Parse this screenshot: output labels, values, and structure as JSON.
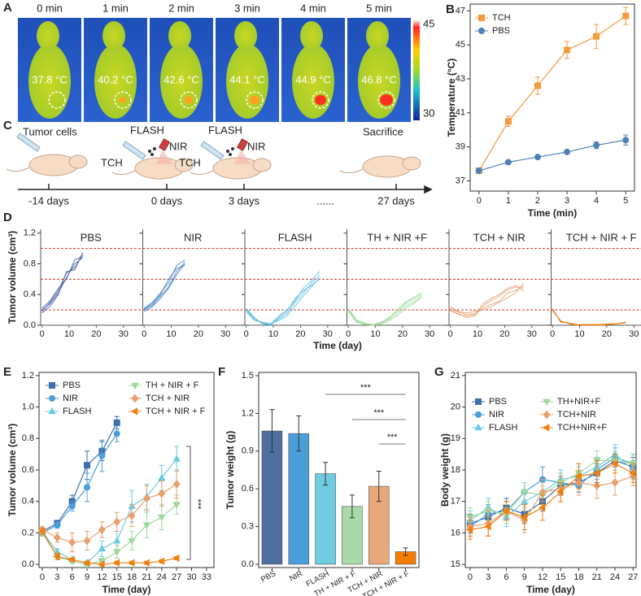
{
  "panel_a": {
    "letter": "A",
    "frames": [
      {
        "time": "0 min",
        "temperature": "37.8 °C"
      },
      {
        "time": "1 min",
        "temperature": "40.2 °C"
      },
      {
        "time": "2 min",
        "temperature": "42.6 °C"
      },
      {
        "time": "3 min",
        "temperature": "44.1 °C"
      },
      {
        "time": "4 min",
        "temperature": "44.9 °C"
      },
      {
        "time": "5 min",
        "temperature": "46.8 °C"
      }
    ],
    "colorbar": {
      "max": "45",
      "min": "30"
    }
  },
  "panel_c": {
    "letter": "C",
    "labels": [
      "Tumor cells",
      "FLASH",
      "NIR",
      "TCH",
      "FLASH",
      "NIR",
      "TCH",
      "Sacrifice"
    ],
    "timeline": [
      "-14 days",
      "0 days",
      "3 days",
      "......",
      "27 days"
    ]
  },
  "chart_data": [
    {
      "panel": "B",
      "type": "line",
      "xlabel": "Time (min)",
      "ylabel": "Temperature (°C)",
      "x": [
        0,
        1,
        2,
        3,
        4,
        5
      ],
      "xlim": [
        -0.3,
        5.3
      ],
      "xticks": [
        0,
        1,
        2,
        3,
        4,
        5
      ],
      "ylim": [
        36.4,
        47.4
      ],
      "yticks": [
        37,
        39,
        41,
        43,
        45,
        47
      ],
      "legend": "upper left",
      "series": [
        {
          "name": "TCH",
          "color": "#f39a3c",
          "marker": "square",
          "values": [
            37.6,
            40.5,
            42.6,
            44.7,
            45.5,
            46.7
          ],
          "errors": [
            0.1,
            0.3,
            0.5,
            0.5,
            0.7,
            0.5
          ]
        },
        {
          "name": "PBS",
          "color": "#4f81b8",
          "marker": "circle",
          "values": [
            37.6,
            38.1,
            38.4,
            38.7,
            39.1,
            39.4
          ],
          "errors": [
            0.1,
            0.1,
            0.1,
            0.1,
            0.2,
            0.3
          ]
        }
      ]
    },
    {
      "panel": "D",
      "type": "multi-line",
      "xlabel": "Time (day)",
      "ylabel": "Tumor volume (cm³)",
      "xlim": [
        -0.5,
        36.5
      ],
      "xticks": [
        0,
        10,
        20,
        30
      ],
      "ylim": [
        0,
        1.25
      ],
      "yticks": [
        {
          "value": 0,
          "label": "0.0"
        },
        0.4,
        0.8,
        1.2
      ],
      "hlines": [
        0.2,
        0.6,
        1.0
      ],
      "hline_color": "#c0392b",
      "panels": [
        {
          "title": "PBS",
          "color": "#3f5fa6",
          "x": [
            0,
            3,
            6,
            9,
            12,
            15
          ],
          "series": [
            {
              "values": [
                0.18,
                0.3,
                0.45,
                0.68,
                0.75,
                0.92
              ]
            },
            {
              "values": [
                0.2,
                0.28,
                0.42,
                0.62,
                0.8,
                0.88
              ]
            },
            {
              "values": [
                0.16,
                0.25,
                0.4,
                0.7,
                0.72,
                0.95
              ]
            },
            {
              "values": [
                0.22,
                0.32,
                0.48,
                0.6,
                0.85,
                0.9
              ]
            }
          ]
        },
        {
          "title": "NIR",
          "color": "#3f80c2",
          "x": [
            0,
            3,
            6,
            9,
            12,
            15
          ],
          "series": [
            {
              "values": [
                0.2,
                0.26,
                0.38,
                0.5,
                0.7,
                0.82
              ]
            },
            {
              "values": [
                0.22,
                0.3,
                0.42,
                0.55,
                0.78,
                0.85
              ]
            },
            {
              "values": [
                0.18,
                0.24,
                0.35,
                0.48,
                0.66,
                0.8
              ]
            },
            {
              "values": [
                0.21,
                0.28,
                0.4,
                0.6,
                0.74,
                0.78
              ]
            }
          ]
        },
        {
          "title": "FLASH",
          "color": "#5bbbe0",
          "x": [
            0,
            3,
            6,
            9,
            12,
            15,
            18,
            21,
            24,
            27
          ],
          "series": [
            {
              "values": [
                0.2,
                0.08,
                0.03,
                0.01,
                0.08,
                0.15,
                0.3,
                0.42,
                0.55,
                0.65
              ]
            },
            {
              "values": [
                0.22,
                0.1,
                0.02,
                0.0,
                0.1,
                0.18,
                0.35,
                0.45,
                0.52,
                0.6
              ]
            },
            {
              "values": [
                0.18,
                0.06,
                0.04,
                0.02,
                0.06,
                0.12,
                0.25,
                0.38,
                0.5,
                0.62
              ]
            },
            {
              "values": [
                0.21,
                0.09,
                0.02,
                0.01,
                0.12,
                0.2,
                0.32,
                0.48,
                0.58,
                0.7
              ]
            }
          ]
        },
        {
          "title": "TH + NIR +F",
          "color": "#9fd99a",
          "x": [
            0,
            3,
            6,
            9,
            12,
            15,
            18,
            21,
            24,
            27
          ],
          "series": [
            {
              "values": [
                0.2,
                0.05,
                0.02,
                0.0,
                0.02,
                0.08,
                0.15,
                0.25,
                0.3,
                0.38
              ]
            },
            {
              "values": [
                0.22,
                0.07,
                0.03,
                0.01,
                0.03,
                0.1,
                0.18,
                0.28,
                0.34,
                0.4
              ]
            },
            {
              "values": [
                0.18,
                0.04,
                0.01,
                0.0,
                0.01,
                0.06,
                0.12,
                0.22,
                0.28,
                0.36
              ]
            },
            {
              "values": [
                0.21,
                0.06,
                0.02,
                0.01,
                0.04,
                0.09,
                0.2,
                0.3,
                0.36,
                0.42
              ]
            }
          ]
        },
        {
          "title": "TCH + NIR",
          "color": "#e8a070",
          "x": [
            0,
            3,
            6,
            9,
            12,
            15,
            18,
            21,
            24,
            27
          ],
          "series": [
            {
              "values": [
                0.22,
                0.17,
                0.14,
                0.15,
                0.22,
                0.27,
                0.31,
                0.42,
                0.45,
                0.51
              ]
            },
            {
              "values": [
                0.2,
                0.15,
                0.1,
                0.12,
                0.25,
                0.32,
                0.38,
                0.46,
                0.5,
                0.48
              ]
            },
            {
              "values": [
                0.24,
                0.18,
                0.16,
                0.18,
                0.2,
                0.24,
                0.3,
                0.36,
                0.42,
                0.55
              ]
            },
            {
              "values": [
                0.19,
                0.14,
                0.12,
                0.14,
                0.28,
                0.35,
                0.4,
                0.48,
                0.52,
                0.44
              ]
            }
          ]
        },
        {
          "title": "TCH + NIR + F",
          "color": "#f07f10",
          "x": [
            0,
            3,
            6,
            9,
            12,
            15,
            18,
            21,
            24,
            27
          ],
          "series": [
            {
              "values": [
                0.21,
                0.05,
                0.03,
                0.01,
                0.0,
                0.01,
                0.01,
                0.01,
                0.02,
                0.04
              ]
            },
            {
              "values": [
                0.19,
                0.06,
                0.02,
                0.0,
                0.01,
                0.01,
                0.0,
                0.01,
                0.02,
                0.03
              ]
            },
            {
              "values": [
                0.22,
                0.04,
                0.03,
                0.01,
                0.01,
                0.0,
                0.01,
                0.02,
                0.02,
                0.04
              ]
            }
          ]
        }
      ]
    },
    {
      "panel": "E",
      "type": "line",
      "xlabel": "Time (day)",
      "ylabel": "Tumor volume (cm³)",
      "annotation": "***",
      "x": [
        0,
        3,
        6,
        9,
        12,
        15,
        18,
        21,
        24,
        27
      ],
      "xlim": [
        -0.65,
        34.5
      ],
      "xticks": [
        0,
        3,
        6,
        9,
        12,
        15,
        18,
        21,
        24,
        27,
        30,
        33
      ],
      "ylim": [
        -0.02,
        1.22
      ],
      "yticks": [
        {
          "value": 0,
          "label": "0.0"
        },
        0.2,
        0.4,
        0.6,
        0.8,
        {
          "value": 1,
          "label": "1.0"
        },
        1.2
      ],
      "legend": "upper left",
      "series": [
        {
          "name": "PBS",
          "color": "#3e6fa8",
          "marker": "square",
          "values": [
            0.21,
            0.26,
            0.4,
            0.63,
            0.72,
            0.9,
            null,
            null,
            null,
            null
          ],
          "errors": [
            0.02,
            0.02,
            0.04,
            0.09,
            0.06,
            0.04,
            null,
            null,
            null,
            null
          ]
        },
        {
          "name": "NIR",
          "color": "#4a9ed9",
          "marker": "circle",
          "values": [
            0.2,
            0.25,
            0.37,
            0.49,
            0.69,
            0.83,
            null,
            null,
            null,
            null
          ],
          "errors": [
            0.02,
            0.02,
            0.03,
            0.09,
            0.1,
            0.05,
            null,
            null,
            null,
            null
          ]
        },
        {
          "name": "FLASH",
          "color": "#6ecbe0",
          "marker": "triangle-up",
          "values": [
            0.21,
            0.08,
            0.03,
            0.01,
            0.1,
            0.15,
            0.37,
            0.43,
            0.55,
            0.67
          ],
          "errors": [
            0.02,
            0.02,
            0.01,
            0.01,
            0.05,
            0.06,
            0.1,
            0.08,
            0.08,
            0.08
          ]
        },
        {
          "name": "TH + NIR + F",
          "color": "#9fd99a",
          "marker": "triangle-down",
          "values": [
            0.2,
            0.05,
            0.02,
            0.0,
            0.02,
            0.08,
            0.15,
            0.25,
            0.3,
            0.38
          ],
          "errors": [
            0.02,
            0.01,
            0.01,
            0.01,
            0.02,
            0.04,
            0.06,
            0.08,
            0.08,
            0.06
          ]
        },
        {
          "name": "TCH + NIR",
          "color": "#e8a070",
          "marker": "diamond",
          "values": [
            0.22,
            0.17,
            0.14,
            0.15,
            0.22,
            0.27,
            0.31,
            0.42,
            0.45,
            0.51
          ],
          "errors": [
            0.02,
            0.03,
            0.06,
            0.06,
            0.05,
            0.06,
            0.07,
            0.08,
            0.08,
            0.09
          ]
        },
        {
          "name": "TCH + NIR + F",
          "color": "#f07f10",
          "marker": "triangle-left",
          "values": [
            0.21,
            0.05,
            0.03,
            0.01,
            0.0,
            0.01,
            0.01,
            0.01,
            0.02,
            0.04
          ],
          "errors": [
            0.02,
            0.02,
            0.01,
            0.01,
            0.01,
            0.01,
            0.01,
            0.01,
            0.01,
            0.01
          ]
        }
      ]
    },
    {
      "panel": "F",
      "type": "bar",
      "ylabel": "Tumor weight (g)",
      "annotations": [
        "***",
        "***",
        "***"
      ],
      "categories": [
        "PBS",
        "NIR",
        "FLASH",
        "TH + NIR + F",
        "TCH + NIR",
        "TCH + NIR + F"
      ],
      "values": [
        1.06,
        1.04,
        0.72,
        0.46,
        0.62,
        0.1
      ],
      "errors": [
        0.17,
        0.14,
        0.09,
        0.09,
        0.12,
        0.03
      ],
      "colors": [
        "#4e6fa0",
        "#4a9ed9",
        "#6ecbe0",
        "#a8dba8",
        "#e8a87c",
        "#f57c00"
      ],
      "ylim": [
        -0.026,
        1.526
      ],
      "yticks": [
        {
          "value": 0,
          "label": "0.0"
        },
        0.3,
        0.6,
        0.9,
        1.2,
        1.5
      ]
    },
    {
      "panel": "G",
      "type": "line",
      "xlabel": "Time (day)",
      "ylabel": "Body weight (g)",
      "x": [
        0,
        3,
        6,
        9,
        12,
        15,
        18,
        21,
        24,
        27
      ],
      "xlim": [
        -0.8,
        27.5
      ],
      "xticks": [
        0,
        3,
        6,
        9,
        12,
        15,
        18,
        21,
        24,
        27
      ],
      "ylim": [
        14.9,
        21.1
      ],
      "yticks": [
        15,
        16,
        17,
        18,
        19,
        20,
        21
      ],
      "legend": "upper left",
      "series": [
        {
          "name": "PBS",
          "color": "#3e6fa8",
          "marker": "square",
          "values": [
            16.3,
            16.5,
            16.8,
            16.6,
            17.0,
            17.5,
            17.6,
            17.9,
            18.3,
            18.1
          ],
          "errors": [
            0.3,
            0.3,
            0.3,
            0.3,
            0.3,
            0.3,
            0.3,
            0.3,
            0.2,
            0.3
          ]
        },
        {
          "name": "NIR",
          "color": "#4a9ed9",
          "marker": "circle",
          "values": [
            16.2,
            16.6,
            16.7,
            17.3,
            17.7,
            17.6,
            17.5,
            18.0,
            18.4,
            18.2
          ],
          "errors": [
            0.3,
            0.3,
            0.3,
            0.3,
            0.4,
            0.3,
            0.3,
            0.3,
            0.3,
            0.3
          ]
        },
        {
          "name": "FLASH",
          "color": "#6ecbe0",
          "marker": "triangle-up",
          "values": [
            16.4,
            16.8,
            16.5,
            17.0,
            17.3,
            17.7,
            17.8,
            18.1,
            18.5,
            18.0
          ],
          "errors": [
            0.3,
            0.3,
            0.3,
            0.3,
            0.3,
            0.3,
            0.3,
            0.3,
            0.3,
            0.3
          ]
        },
        {
          "name": "TH+NIR+F",
          "color": "#9fd99a",
          "marker": "triangle-down",
          "values": [
            16.5,
            16.7,
            16.6,
            17.3,
            17.2,
            17.6,
            17.9,
            18.3,
            18.3,
            18.2
          ],
          "errors": [
            0.3,
            0.3,
            0.3,
            0.3,
            0.3,
            0.3,
            0.3,
            0.3,
            0.3,
            0.3
          ]
        },
        {
          "name": "TCH+NIR",
          "color": "#e8a070",
          "marker": "diamond",
          "values": [
            16.2,
            16.3,
            16.7,
            16.4,
            17.3,
            17.4,
            17.6,
            17.5,
            17.6,
            17.8
          ],
          "errors": [
            0.3,
            0.4,
            0.3,
            0.4,
            0.4,
            0.4,
            0.4,
            0.4,
            0.4,
            0.3
          ]
        },
        {
          "name": "TCH+NIR+F",
          "color": "#f07f10",
          "marker": "triangle-left",
          "values": [
            16.1,
            16.2,
            16.7,
            16.5,
            16.8,
            17.3,
            17.8,
            17.9,
            18.2,
            17.9
          ],
          "errors": [
            0.3,
            0.3,
            0.3,
            0.4,
            0.4,
            0.3,
            0.4,
            0.4,
            0.3,
            0.3
          ]
        }
      ]
    }
  ]
}
